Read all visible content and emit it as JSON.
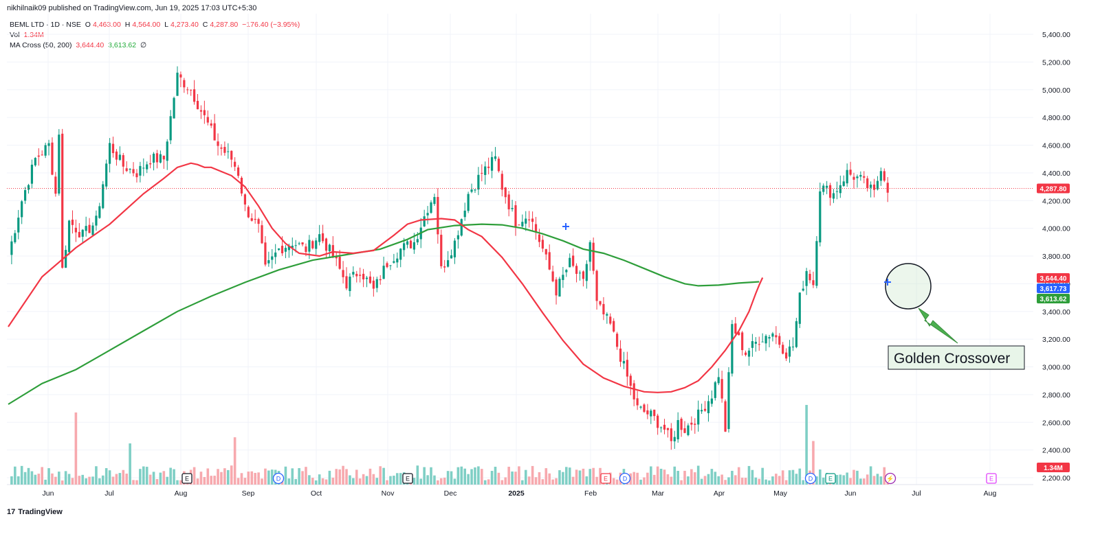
{
  "header": {
    "published": "nikhilnaik09 published on TradingView.com, Jun 19, 2025 17:03 UTC+5:30",
    "symbol": "BEML LTD · 1D · NSE",
    "o_label": "O",
    "o": "4,463.00",
    "h_label": "H",
    "h": "4,564.00",
    "l_label": "L",
    "l": "4,273.40",
    "c_label": "C",
    "c": "4,287.80",
    "change": "−176.40 (−3.95%)",
    "vol_label": "Vol",
    "vol": "1.34M",
    "ma_label": "MA Cross (50, 200)",
    "ma50": "3,644.40",
    "ma200": "3,613.62",
    "ma_extra": "∅"
  },
  "footer": {
    "brand": "TradingView",
    "logo_mark": "17"
  },
  "annotation": {
    "text": "Golden Crossover"
  },
  "price_tags": {
    "last": "4,287.80",
    "ma50": "3,644.40",
    "cross": "3,617.73",
    "ma200": "3,613.62",
    "volume": "1.34M"
  },
  "events": [
    {
      "letter": "E",
      "type": "earnings",
      "x_month": "Aug"
    },
    {
      "letter": "D",
      "type": "dividend",
      "x_month": "Sep"
    },
    {
      "letter": "E",
      "type": "earnings",
      "x_month": "Nov"
    },
    {
      "letter": "E",
      "type": "earnings",
      "x_month": "Feb"
    },
    {
      "letter": "D",
      "type": "dividend",
      "x_month": "Feb"
    },
    {
      "letter": "D",
      "type": "dividend",
      "x_month": "May"
    },
    {
      "letter": "E",
      "type": "earnings",
      "x_month": "May"
    },
    {
      "letter": "⚡",
      "type": "alert",
      "x_month": "Jun"
    },
    {
      "letter": "E",
      "type": "earnings",
      "x_month": "Aug"
    }
  ],
  "colors": {
    "up": "#089981",
    "down": "#f23645",
    "vol_up": "#7fcfc5",
    "vol_down": "#f7a9ae",
    "ma50": "#f23645",
    "ma200": "#2e9e3a",
    "grid": "#f0f3fa",
    "cross_marker": "#2962ff"
  },
  "chart_data": {
    "type": "candlestick",
    "y_axis": {
      "ticks": [
        "5,400.00",
        "5,200.00",
        "5,000.00",
        "4,800.00",
        "4,600.00",
        "4,400.00",
        "4,200.00",
        "4,000.00",
        "3,800.00",
        "3,600.00",
        "3,400.00",
        "3,200.00",
        "3,000.00",
        "2,800.00",
        "2,600.00",
        "2,400.00",
        "2,200.00"
      ],
      "range": [
        2150,
        5550
      ]
    },
    "x_axis": {
      "ticks": [
        "Jun",
        "Jul",
        "Aug",
        "Sep",
        "Oct",
        "Nov",
        "Dec",
        "2025",
        "Feb",
        "Mar",
        "Apr",
        "May",
        "Jun",
        "Jul",
        "Aug"
      ]
    },
    "price_path": [
      [
        0,
        3800
      ],
      [
        4,
        4200
      ],
      [
        8,
        4500
      ],
      [
        12,
        4600
      ],
      [
        14,
        4250
      ],
      [
        15,
        4700
      ],
      [
        16,
        3700
      ],
      [
        18,
        4050
      ],
      [
        22,
        3950
      ],
      [
        26,
        4050
      ],
      [
        30,
        4600
      ],
      [
        34,
        4450
      ],
      [
        38,
        4400
      ],
      [
        42,
        4500
      ],
      [
        46,
        4500
      ],
      [
        50,
        5100
      ],
      [
        54,
        5000
      ],
      [
        58,
        4800
      ],
      [
        62,
        4600
      ],
      [
        66,
        4500
      ],
      [
        68,
        4400
      ],
      [
        70,
        4150
      ],
      [
        74,
        4000
      ],
      [
        76,
        3700
      ],
      [
        80,
        3850
      ],
      [
        84,
        3900
      ],
      [
        88,
        3850
      ],
      [
        92,
        3950
      ],
      [
        96,
        3800
      ],
      [
        100,
        3600
      ],
      [
        104,
        3700
      ],
      [
        108,
        3550
      ],
      [
        112,
        3750
      ],
      [
        116,
        3850
      ],
      [
        120,
        3900
      ],
      [
        124,
        4150
      ],
      [
        126,
        4250
      ],
      [
        128,
        3700
      ],
      [
        132,
        3900
      ],
      [
        136,
        4250
      ],
      [
        140,
        4400
      ],
      [
        144,
        4500
      ],
      [
        146,
        4300
      ],
      [
        150,
        4050
      ],
      [
        154,
        4100
      ],
      [
        158,
        3850
      ],
      [
        162,
        3550
      ],
      [
        166,
        3750
      ],
      [
        170,
        3600
      ],
      [
        172,
        3900
      ],
      [
        174,
        3450
      ],
      [
        178,
        3300
      ],
      [
        182,
        3000
      ],
      [
        186,
        2700
      ],
      [
        190,
        2650
      ],
      [
        194,
        2550
      ],
      [
        196,
        2450
      ],
      [
        198,
        2600
      ],
      [
        200,
        2550
      ],
      [
        204,
        2650
      ],
      [
        208,
        2800
      ],
      [
        210,
        2950
      ],
      [
        212,
        2550
      ],
      [
        214,
        3300
      ],
      [
        218,
        3100
      ],
      [
        222,
        3200
      ],
      [
        226,
        3250
      ],
      [
        230,
        3100
      ],
      [
        232,
        3150
      ],
      [
        234,
        3500
      ],
      [
        236,
        3700
      ],
      [
        238,
        3600
      ],
      [
        240,
        4300
      ],
      [
        244,
        4250
      ],
      [
        248,
        4400
      ],
      [
        252,
        4350
      ],
      [
        256,
        4250
      ],
      [
        258,
        4450
      ],
      [
        260,
        4290
      ]
    ],
    "ma50_path": [
      [
        0,
        3290
      ],
      [
        10,
        3650
      ],
      [
        20,
        3860
      ],
      [
        30,
        4030
      ],
      [
        40,
        4250
      ],
      [
        46,
        4360
      ],
      [
        50,
        4440
      ],
      [
        54,
        4470
      ],
      [
        56,
        4460
      ],
      [
        58,
        4440
      ],
      [
        60,
        4440
      ],
      [
        66,
        4380
      ],
      [
        70,
        4300
      ],
      [
        74,
        4160
      ],
      [
        78,
        4000
      ],
      [
        82,
        3890
      ],
      [
        86,
        3820
      ],
      [
        92,
        3800
      ],
      [
        96,
        3830
      ],
      [
        102,
        3820
      ],
      [
        108,
        3840
      ],
      [
        114,
        3950
      ],
      [
        118,
        4030
      ],
      [
        122,
        4060
      ],
      [
        128,
        4070
      ],
      [
        132,
        4060
      ],
      [
        136,
        3990
      ],
      [
        140,
        3940
      ],
      [
        146,
        3790
      ],
      [
        152,
        3600
      ],
      [
        158,
        3390
      ],
      [
        164,
        3190
      ],
      [
        170,
        3020
      ],
      [
        176,
        2920
      ],
      [
        182,
        2860
      ],
      [
        188,
        2820
      ],
      [
        192,
        2815
      ],
      [
        196,
        2820
      ],
      [
        200,
        2850
      ],
      [
        204,
        2900
      ],
      [
        208,
        3000
      ],
      [
        212,
        3120
      ],
      [
        216,
        3260
      ],
      [
        219,
        3400
      ],
      [
        221,
        3530
      ],
      [
        222,
        3590
      ],
      [
        223,
        3644
      ]
    ],
    "ma200_path": [
      [
        0,
        2730
      ],
      [
        10,
        2880
      ],
      [
        20,
        2980
      ],
      [
        30,
        3120
      ],
      [
        40,
        3260
      ],
      [
        50,
        3400
      ],
      [
        60,
        3510
      ],
      [
        70,
        3610
      ],
      [
        80,
        3700
      ],
      [
        90,
        3770
      ],
      [
        100,
        3810
      ],
      [
        110,
        3850
      ],
      [
        118,
        3920
      ],
      [
        124,
        3990
      ],
      [
        132,
        4020
      ],
      [
        140,
        4030
      ],
      [
        146,
        4025
      ],
      [
        152,
        4000
      ],
      [
        158,
        3960
      ],
      [
        164,
        3910
      ],
      [
        170,
        3850
      ],
      [
        176,
        3820
      ],
      [
        182,
        3770
      ],
      [
        188,
        3710
      ],
      [
        194,
        3650
      ],
      [
        200,
        3600
      ],
      [
        204,
        3585
      ],
      [
        210,
        3590
      ],
      [
        216,
        3605
      ],
      [
        222,
        3614
      ]
    ],
    "volume_note": "relative bar heights, units M",
    "volume_max_label": "1.34M",
    "series": [
      {
        "name": "MA Cross (50, 200)"
      }
    ]
  }
}
